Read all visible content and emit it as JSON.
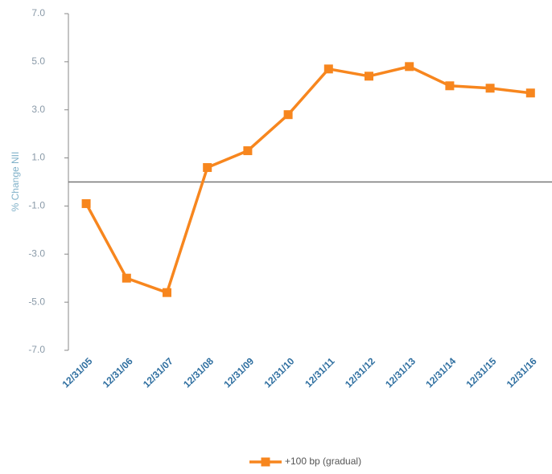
{
  "chart_data": {
    "type": "line",
    "y_label": "% Change NII",
    "categories": [
      "12/31/05",
      "12/31/06",
      "12/31/07",
      "12/31/08",
      "12/31/09",
      "12/31/10",
      "12/31/11",
      "12/31/12",
      "12/31/13",
      "12/31/14",
      "12/31/15",
      "12/31/16"
    ],
    "series": [
      {
        "name": "+100 bp (gradual)",
        "color": "#f7861e",
        "values": [
          -0.9,
          -4.0,
          -4.6,
          0.6,
          1.3,
          2.8,
          4.7,
          4.4,
          4.8,
          4.0,
          3.9,
          3.7
        ]
      }
    ],
    "ylim": [
      -7,
      7
    ],
    "yticks": [
      {
        "value": -7,
        "label": "-7.0"
      },
      {
        "value": -5,
        "label": "-5.0"
      },
      {
        "value": -3,
        "label": "-3.0"
      },
      {
        "value": -1,
        "label": "-1.0"
      },
      {
        "value": 1,
        "label": "1.0"
      },
      {
        "value": 3,
        "label": "3.0"
      },
      {
        "value": 5,
        "label": "5.0"
      },
      {
        "value": 7,
        "label": "7.0"
      }
    ],
    "legend": "bottom"
  }
}
